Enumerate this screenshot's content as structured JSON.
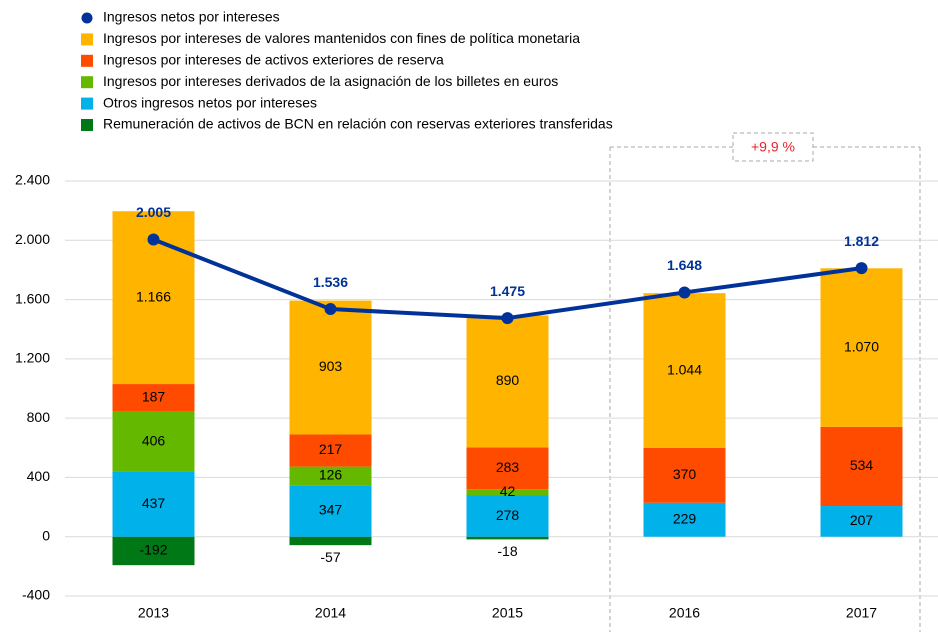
{
  "chart_data": {
    "type": "bar",
    "categories": [
      "2013",
      "2014",
      "2015",
      "2016",
      "2017"
    ],
    "annotation": "+9,9 %",
    "ylim": [
      -400,
      2400
    ],
    "yticks": [
      -400,
      0,
      400,
      800,
      {
        "value": 1200,
        "label": "1.200"
      },
      {
        "value": 1600,
        "label": "1.600"
      },
      {
        "value": 2000,
        "label": "2.000"
      },
      {
        "value": 2400,
        "label": "2.400"
      }
    ],
    "grid": true,
    "series": [
      {
        "name": "Ingresos netos por intereses",
        "type": "line",
        "color": "#003299",
        "values": [
          2005,
          1536,
          1475,
          1648,
          1812
        ],
        "value_labels": [
          "2.005",
          "1.536",
          "1.475",
          "1.648",
          "1.812"
        ]
      },
      {
        "name": "Ingresos por intereses de valores mantenidos con fines de política monetaria",
        "color": "#ffb400",
        "values": [
          1166,
          903,
          890,
          1044,
          1070
        ],
        "value_labels": [
          "1.166",
          "903",
          "890",
          "1.044",
          "1.070"
        ]
      },
      {
        "name": "Ingresos por intereses de activos exteriores de reserva",
        "color": "#ff4b00",
        "values": [
          187,
          217,
          283,
          370,
          534
        ],
        "value_labels": [
          "187",
          "217",
          "283",
          "370",
          "534"
        ]
      },
      {
        "name": "Ingresos por intereses derivados de la asignación de los billetes en euros",
        "color": "#65b800",
        "values": [
          406,
          126,
          42,
          null,
          null
        ],
        "value_labels": [
          "406",
          "126",
          "42",
          null,
          null
        ]
      },
      {
        "name": "Otros ingresos netos por intereses",
        "color": "#00b1ea",
        "values": [
          437,
          347,
          278,
          229,
          207
        ],
        "value_labels": [
          "437",
          "347",
          "278",
          "229",
          "207"
        ]
      },
      {
        "name": "Remuneración de activos de BCN en relación con reservas exteriores transferidas",
        "color": "#007816",
        "values": [
          -192,
          -57,
          -18,
          null,
          null
        ],
        "value_labels": [
          "-192",
          "-57",
          "-18",
          null,
          null
        ]
      }
    ]
  }
}
